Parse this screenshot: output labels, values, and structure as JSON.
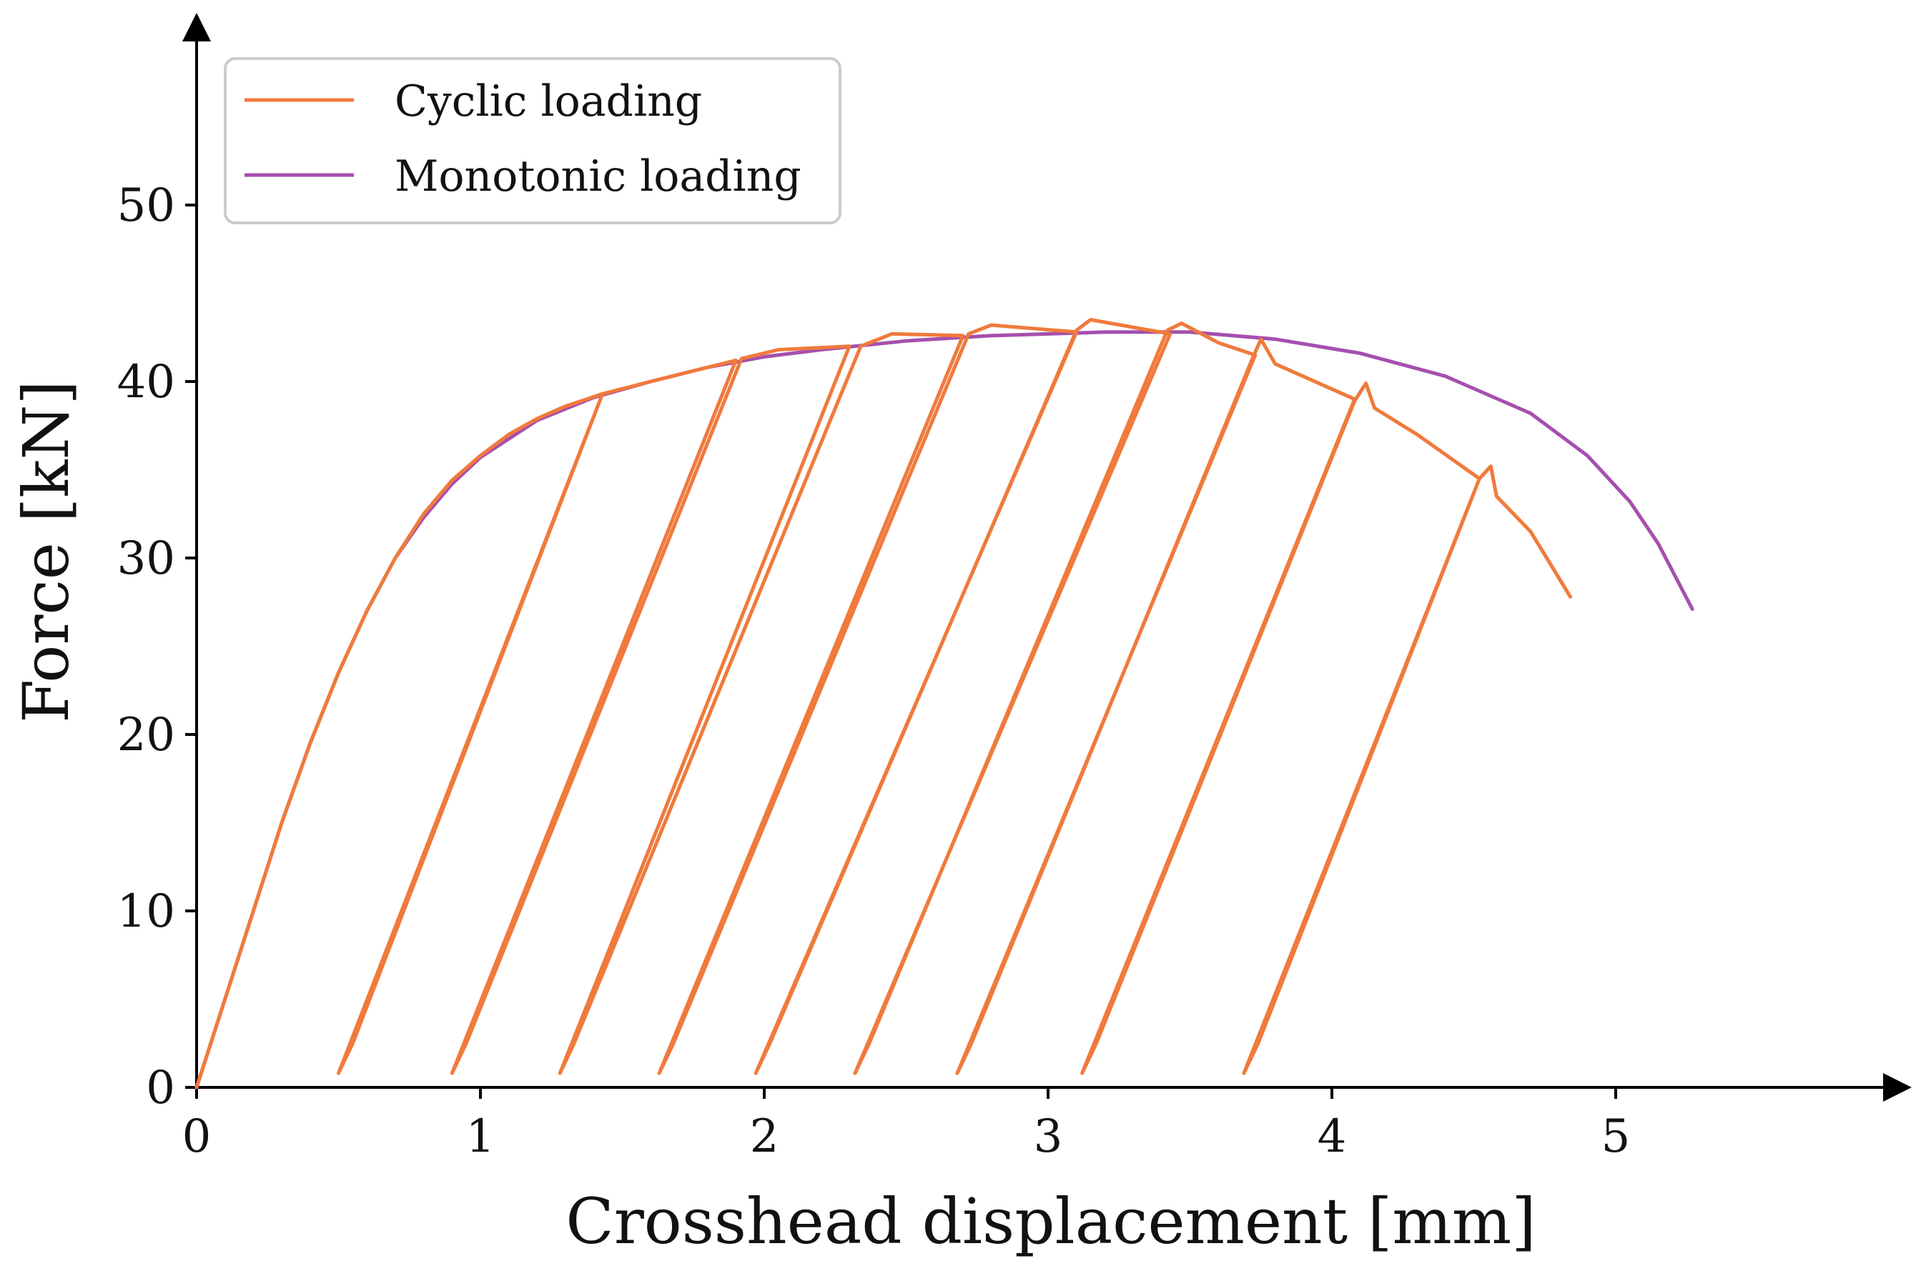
{
  "chart_data": {
    "type": "line",
    "title": "",
    "xlabel": "Crosshead displacement [mm]",
    "ylabel": "Force [kN]",
    "xlim": [
      0,
      6.0
    ],
    "ylim": [
      0,
      59
    ],
    "xticks": [
      0,
      1,
      2,
      3,
      4,
      5
    ],
    "yticks": [
      0,
      10,
      20,
      30,
      40,
      50
    ],
    "grid": false,
    "legend_position": "top-left",
    "colors": {
      "cyclic": "#F07A3C",
      "monotonic": "#A64FAE",
      "axis": "#000000"
    },
    "series": [
      {
        "name": "Cyclic loading",
        "color": "#F07A3C",
        "points": [
          [
            0,
            0
          ],
          [
            0.1,
            5.0
          ],
          [
            0.2,
            10.0
          ],
          [
            0.3,
            15.0
          ],
          [
            0.4,
            19.5
          ],
          [
            0.5,
            23.5
          ],
          [
            0.6,
            27.0
          ],
          [
            0.7,
            30.0
          ],
          [
            0.8,
            32.5
          ],
          [
            0.9,
            34.4
          ],
          [
            1.0,
            35.8
          ],
          [
            1.1,
            37.0
          ],
          [
            1.2,
            37.9
          ],
          [
            1.3,
            38.6
          ],
          [
            1.43,
            39.3
          ],
          [
            0.5,
            0.8
          ],
          [
            0.55,
            2.5
          ],
          [
            1.43,
            39.3
          ],
          [
            1.6,
            40.0
          ],
          [
            1.9,
            41.2
          ],
          [
            0.9,
            0.8
          ],
          [
            0.95,
            2.5
          ],
          [
            1.92,
            41.3
          ],
          [
            2.05,
            41.8
          ],
          [
            2.3,
            42.0
          ],
          [
            1.28,
            0.8
          ],
          [
            1.33,
            2.5
          ],
          [
            2.34,
            42.0
          ],
          [
            2.45,
            42.7
          ],
          [
            2.7,
            42.6
          ],
          [
            1.63,
            0.8
          ],
          [
            1.68,
            2.5
          ],
          [
            2.72,
            42.7
          ],
          [
            2.8,
            43.2
          ],
          [
            3.1,
            42.8
          ],
          [
            1.97,
            0.8
          ],
          [
            2.02,
            2.5
          ],
          [
            3.1,
            42.9
          ],
          [
            3.15,
            43.5
          ],
          [
            3.43,
            42.7
          ],
          [
            2.32,
            0.8
          ],
          [
            2.37,
            2.5
          ],
          [
            3.42,
            42.9
          ],
          [
            3.47,
            43.3
          ],
          [
            3.6,
            42.2
          ],
          [
            3.73,
            41.5
          ],
          [
            2.68,
            0.8
          ],
          [
            2.73,
            2.5
          ],
          [
            3.72,
            41.3
          ],
          [
            3.75,
            42.4
          ],
          [
            3.8,
            41.0
          ],
          [
            4.08,
            39.0
          ],
          [
            3.12,
            0.8
          ],
          [
            3.17,
            2.5
          ],
          [
            4.08,
            38.9
          ],
          [
            4.12,
            39.9
          ],
          [
            4.15,
            38.5
          ],
          [
            4.3,
            37.0
          ],
          [
            4.52,
            34.5
          ],
          [
            3.69,
            0.8
          ],
          [
            3.74,
            2.5
          ],
          [
            4.52,
            34.5
          ],
          [
            4.56,
            35.2
          ],
          [
            4.58,
            33.5
          ],
          [
            4.7,
            31.5
          ],
          [
            4.84,
            27.8
          ]
        ]
      },
      {
        "name": "Monotonic loading",
        "color": "#A64FAE",
        "points": [
          [
            0,
            0
          ],
          [
            0.1,
            5.0
          ],
          [
            0.2,
            10.0
          ],
          [
            0.3,
            15.0
          ],
          [
            0.4,
            19.5
          ],
          [
            0.5,
            23.5
          ],
          [
            0.6,
            27.0
          ],
          [
            0.7,
            30.0
          ],
          [
            0.8,
            32.3
          ],
          [
            0.9,
            34.2
          ],
          [
            1.0,
            35.7
          ],
          [
            1.2,
            37.8
          ],
          [
            1.4,
            39.1
          ],
          [
            1.6,
            40.0
          ],
          [
            1.8,
            40.8
          ],
          [
            2.0,
            41.4
          ],
          [
            2.2,
            41.8
          ],
          [
            2.5,
            42.3
          ],
          [
            2.8,
            42.6
          ],
          [
            3.2,
            42.8
          ],
          [
            3.5,
            42.8
          ],
          [
            3.8,
            42.4
          ],
          [
            4.1,
            41.6
          ],
          [
            4.4,
            40.3
          ],
          [
            4.7,
            38.2
          ],
          [
            4.9,
            35.8
          ],
          [
            5.05,
            33.2
          ],
          [
            5.15,
            30.8
          ],
          [
            5.27,
            27.1
          ]
        ]
      }
    ],
    "legend": [
      "Cyclic loading",
      "Monotonic loading"
    ]
  }
}
